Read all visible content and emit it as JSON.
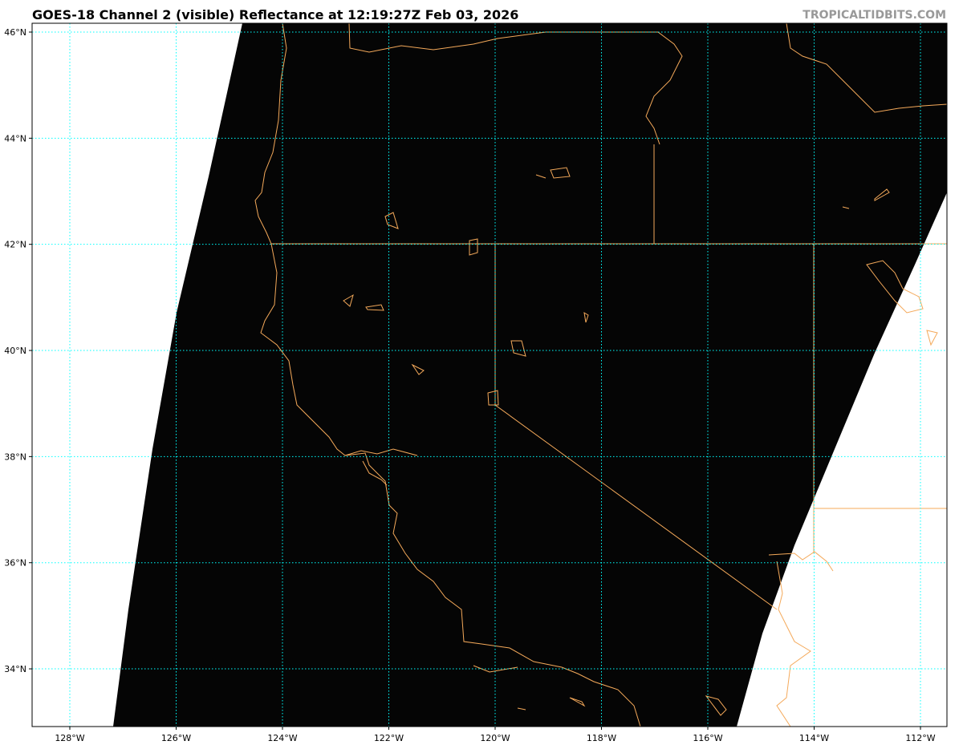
{
  "title": "GOES-18 Channel 2 (visible) Reflectance at 12:19:27Z Feb 03, 2026",
  "credit": "TROPICALTIDBITS.COM",
  "map": {
    "projection": "plate-carree",
    "lon_range": [
      -128.7,
      -111.5
    ],
    "lat_range": [
      32.9,
      46.2
    ],
    "lon_ticks": [
      {
        "value": -128,
        "label": "128°W"
      },
      {
        "value": -126,
        "label": "126°W"
      },
      {
        "value": -124,
        "label": "124°W"
      },
      {
        "value": -122,
        "label": "122°W"
      },
      {
        "value": -120,
        "label": "120°W"
      },
      {
        "value": -118,
        "label": "118°W"
      },
      {
        "value": -116,
        "label": "116°W"
      },
      {
        "value": -114,
        "label": "114°W"
      },
      {
        "value": -112,
        "label": "112°W"
      }
    ],
    "lat_ticks": [
      {
        "value": 46,
        "label": "46°N"
      },
      {
        "value": 44,
        "label": "44°N"
      },
      {
        "value": 42,
        "label": "42°N"
      },
      {
        "value": 40,
        "label": "40°N"
      },
      {
        "value": 38,
        "label": "38°N"
      },
      {
        "value": 36,
        "label": "36°N"
      },
      {
        "value": 34,
        "label": "34°N"
      }
    ],
    "colors": {
      "imagery": "#050505",
      "no_data": "#ffffff",
      "gridlines": "#00ffff",
      "coastlines_borders": "#f4a95a"
    }
  }
}
